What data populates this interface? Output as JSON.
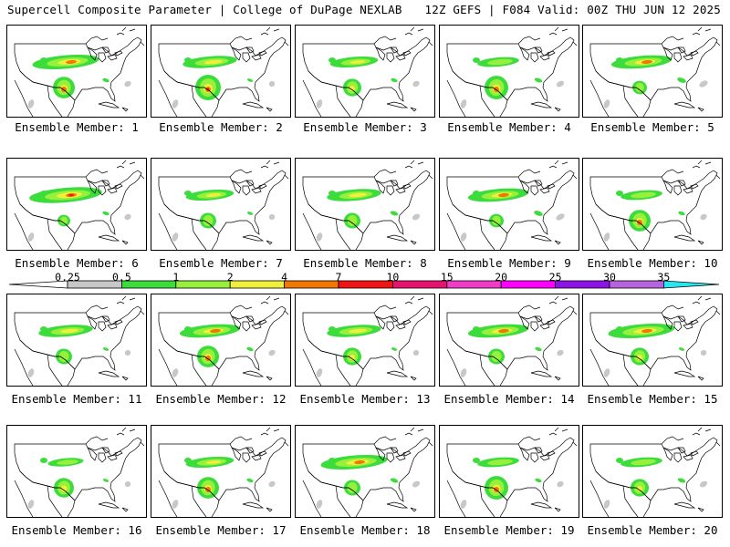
{
  "header": {
    "title_left": "Supercell Composite Parameter | College of DuPage NEXLAB",
    "title_right": "12Z GEFS | F084 Valid: 00Z THU JUN 12 2025"
  },
  "members": [
    {
      "label": "Ensemble Member: 1"
    },
    {
      "label": "Ensemble Member: 2"
    },
    {
      "label": "Ensemble Member: 3"
    },
    {
      "label": "Ensemble Member: 4"
    },
    {
      "label": "Ensemble Member: 5"
    },
    {
      "label": "Ensemble Member: 6"
    },
    {
      "label": "Ensemble Member: 7"
    },
    {
      "label": "Ensemble Member: 8"
    },
    {
      "label": "Ensemble Member: 9"
    },
    {
      "label": "Ensemble Member: 10"
    },
    {
      "label": "Ensemble Member: 11"
    },
    {
      "label": "Ensemble Member: 12"
    },
    {
      "label": "Ensemble Member: 13"
    },
    {
      "label": "Ensemble Member: 14"
    },
    {
      "label": "Ensemble Member: 15"
    },
    {
      "label": "Ensemble Member: 16"
    },
    {
      "label": "Ensemble Member: 17"
    },
    {
      "label": "Ensemble Member: 18"
    },
    {
      "label": "Ensemble Member: 19"
    },
    {
      "label": "Ensemble Member: 20"
    }
  ],
  "colorbar": {
    "labels": [
      "0.25",
      "0.5",
      "1",
      "2",
      "4",
      "7",
      "10",
      "15",
      "20",
      "25",
      "30",
      "35"
    ],
    "colors": [
      "#c8c8c8",
      "#3cdc3c",
      "#96f03c",
      "#f0f03c",
      "#f07800",
      "#f01414",
      "#e6146e",
      "#f03cc8",
      "#ff00ff",
      "#8c14e6",
      "#b464dc",
      "#28e6f0"
    ]
  }
}
